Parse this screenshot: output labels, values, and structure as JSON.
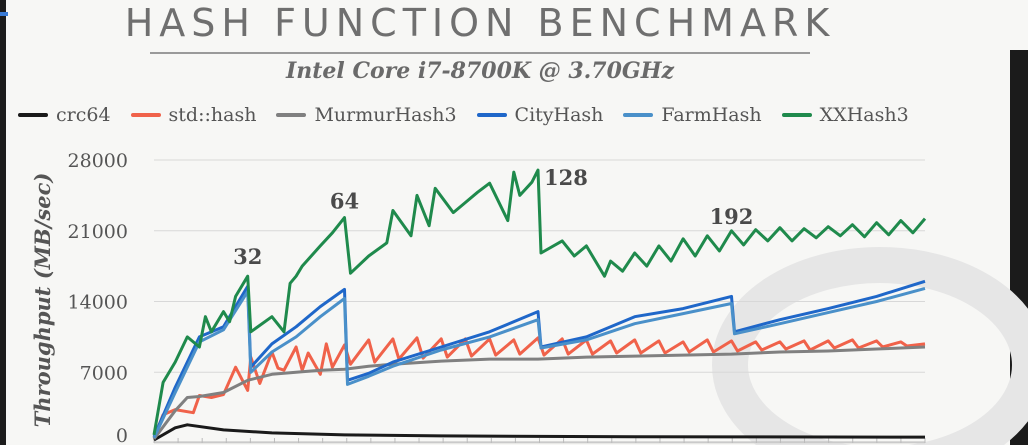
{
  "slide": {
    "title": "HASH FUNCTION BENCHMARK",
    "subtitle": "Intel Core i7-8700K @ 3.70GHz"
  },
  "colors": {
    "crc64": "#1a1a1a",
    "std_hash": "#f0624a",
    "murmur": "#808080",
    "city": "#1f67c9",
    "farm": "#4a90c9",
    "xxhash": "#1f8a4c",
    "axis_text": "#555555",
    "grid": "#d8d8d8"
  },
  "chart_data": {
    "type": "line",
    "title": "HASH FUNCTION BENCHMARK",
    "subtitle": "Intel Core i7-8700K @ 3.70GHz",
    "xlabel": "",
    "ylabel": "Throughput (MB/sec)",
    "ylim": [
      0,
      28000
    ],
    "yticks": [
      0,
      7000,
      14000,
      21000,
      28000
    ],
    "xlim": [
      1,
      256
    ],
    "grid": "horizontal",
    "legend_position": "top",
    "annotations": [
      {
        "text": "32",
        "x": 32,
        "y": 16500
      },
      {
        "text": "64",
        "x": 64,
        "y": 22000
      },
      {
        "text": "128",
        "x": 128,
        "y": 26700
      },
      {
        "text": "192",
        "x": 192,
        "y": 20500
      }
    ],
    "series": [
      {
        "name": "crc64",
        "key": "crc64",
        "x": [
          1,
          8,
          12,
          24,
          40,
          64,
          96,
          128,
          160,
          192,
          224,
          256
        ],
        "values": [
          300,
          1500,
          1800,
          1300,
          1000,
          800,
          700,
          650,
          620,
          600,
          590,
          580
        ]
      },
      {
        "name": "std::hash",
        "key": "std_hash",
        "x": [
          1,
          4,
          8,
          14,
          16,
          20,
          24,
          28,
          32,
          33,
          36,
          40,
          42,
          44,
          48,
          50,
          52,
          56,
          58,
          60,
          64,
          66,
          72,
          74,
          80,
          82,
          88,
          90,
          96,
          98,
          104,
          106,
          112,
          114,
          120,
          122,
          128,
          130,
          136,
          138,
          144,
          146,
          152,
          154,
          160,
          162,
          168,
          170,
          176,
          178,
          184,
          186,
          192,
          194,
          200,
          202,
          208,
          210,
          216,
          218,
          224,
          226,
          232,
          234,
          240,
          242,
          248,
          250,
          256
        ],
        "values": [
          500,
          2800,
          3300,
          3000,
          4700,
          4500,
          4800,
          7500,
          5200,
          8500,
          5900,
          9000,
          7400,
          7200,
          9500,
          7200,
          8900,
          6800,
          9800,
          7500,
          9700,
          7800,
          10200,
          8000,
          10300,
          8300,
          10400,
          8400,
          10300,
          8500,
          10300,
          8600,
          10300,
          8700,
          10200,
          8800,
          10400,
          8700,
          10300,
          8800,
          10200,
          8800,
          10100,
          8900,
          10200,
          8900,
          10100,
          8900,
          10000,
          9000,
          10200,
          9000,
          10100,
          9100,
          10000,
          9200,
          10000,
          9300,
          10100,
          9200,
          10100,
          9400,
          10200,
          9400,
          10100,
          9500,
          10000,
          9600,
          9800
        ]
      },
      {
        "name": "MurmurHash3",
        "key": "murmur",
        "x": [
          1,
          8,
          12,
          16,
          24,
          32,
          40,
          48,
          56,
          64,
          72,
          80,
          96,
          112,
          128,
          144,
          160,
          176,
          192,
          208,
          224,
          240,
          256
        ],
        "values": [
          400,
          3200,
          4500,
          4600,
          5000,
          6200,
          6800,
          7000,
          7200,
          7300,
          7600,
          7800,
          8100,
          8300,
          8300,
          8500,
          8600,
          8700,
          8800,
          9000,
          9100,
          9300,
          9500
        ]
      },
      {
        "name": "CityHash",
        "key": "city",
        "x": [
          1,
          8,
          16,
          24,
          32,
          33,
          40,
          48,
          56,
          64,
          65,
          72,
          80,
          96,
          112,
          128,
          129,
          144,
          160,
          176,
          192,
          193,
          208,
          224,
          240,
          256
        ],
        "values": [
          600,
          5500,
          10500,
          11500,
          15500,
          7500,
          9800,
          11500,
          13500,
          15200,
          6200,
          6900,
          8000,
          9500,
          11000,
          13000,
          9500,
          10500,
          12500,
          13300,
          14500,
          11000,
          12200,
          13300,
          14500,
          16000
        ]
      },
      {
        "name": "FarmHash",
        "key": "farm",
        "x": [
          1,
          8,
          16,
          24,
          32,
          33,
          40,
          48,
          56,
          64,
          65,
          72,
          80,
          96,
          112,
          128,
          129,
          144,
          160,
          176,
          192,
          193,
          208,
          224,
          240,
          256
        ],
        "values": [
          500,
          5000,
          10000,
          11200,
          15000,
          7000,
          9000,
          10500,
          12500,
          14300,
          5800,
          6600,
          7600,
          9200,
          10500,
          12200,
          9400,
          10200,
          11800,
          12800,
          13800,
          10800,
          11800,
          12900,
          14000,
          15300
        ]
      },
      {
        "name": "XXHash3",
        "key": "xxhash",
        "x": [
          1,
          4,
          8,
          12,
          16,
          18,
          20,
          24,
          26,
          28,
          32,
          33,
          40,
          44,
          46,
          48,
          50,
          56,
          60,
          64,
          66,
          72,
          78,
          80,
          86,
          88,
          92,
          94,
          100,
          104,
          108,
          112,
          118,
          120,
          122,
          126,
          128,
          129,
          136,
          140,
          144,
          150,
          152,
          156,
          160,
          164,
          168,
          172,
          176,
          180,
          184,
          188,
          192,
          196,
          200,
          204,
          208,
          212,
          216,
          220,
          224,
          228,
          232,
          236,
          240,
          244,
          248,
          252,
          256
        ],
        "values": [
          800,
          6000,
          8000,
          10500,
          9500,
          12500,
          11000,
          13000,
          12000,
          14500,
          16500,
          11000,
          12500,
          11000,
          15800,
          16500,
          17500,
          19500,
          20800,
          22300,
          16800,
          18500,
          19800,
          23000,
          20500,
          24500,
          21500,
          25200,
          22800,
          23800,
          24800,
          25700,
          22000,
          26800,
          24500,
          25800,
          27000,
          18800,
          20000,
          18500,
          19500,
          16500,
          18000,
          17000,
          18800,
          17500,
          19500,
          18000,
          20200,
          18500,
          20500,
          19000,
          21000,
          19600,
          21100,
          20000,
          21300,
          20000,
          21200,
          20300,
          21400,
          20500,
          21600,
          20400,
          21800,
          20600,
          22000,
          20800,
          22200
        ]
      }
    ]
  }
}
